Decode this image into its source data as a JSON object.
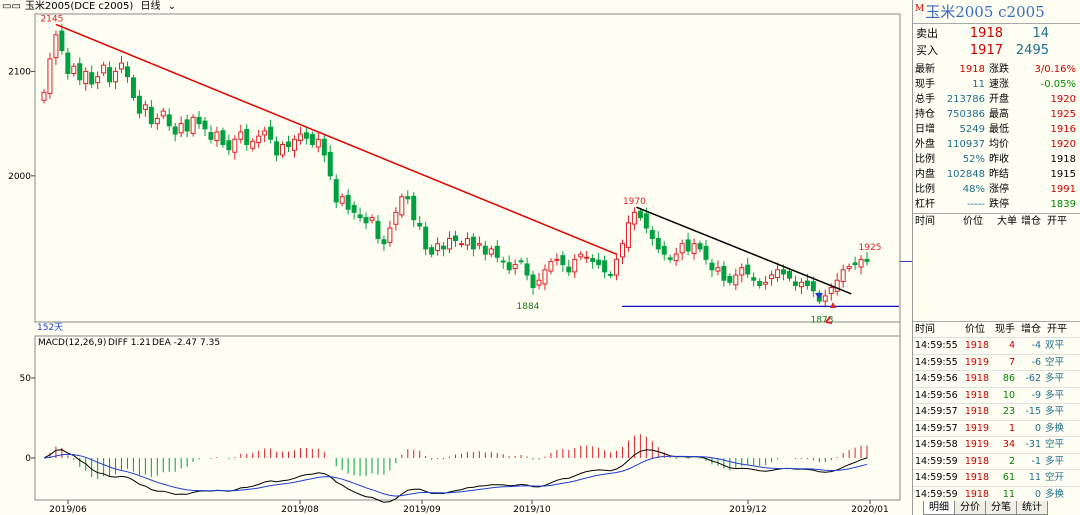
{
  "window": {
    "symbol_label": "玉米2005(DCE c2005)",
    "period_label": "日线"
  },
  "quote": {
    "title": "玉米2005 c2005",
    "title_marker": "M",
    "sell": {
      "label": "卖出",
      "price": "1918",
      "volume": "14"
    },
    "buy": {
      "label": "买入",
      "price": "1917",
      "volume": "2495"
    },
    "rows": [
      {
        "l1": "最新",
        "v1": "1918",
        "l2": "涨跌",
        "v2": "3/0.16%",
        "c1": "red",
        "c2": "red"
      },
      {
        "l1": "现手",
        "v1": "11",
        "l2": "速涨",
        "v2": "-0.05%",
        "c1": "teal",
        "c2": "grn"
      },
      {
        "l1": "总手",
        "v1": "213786",
        "l2": "开盘",
        "v2": "1920",
        "c1": "teal",
        "c2": "red"
      },
      {
        "l1": "持仓",
        "v1": "750386",
        "l2": "最高",
        "v2": "1925",
        "c1": "teal",
        "c2": "red"
      },
      {
        "l1": "日增",
        "v1": "5249",
        "l2": "最低",
        "v2": "1916",
        "c1": "teal",
        "c2": "red"
      },
      {
        "l1": "外盘",
        "v1": "110937",
        "l2": "均价",
        "v2": "1920",
        "c1": "teal",
        "c2": "red"
      },
      {
        "l1": "比例",
        "v1": "52%",
        "l2": "昨收",
        "v2": "1918",
        "c1": "teal",
        "c2": "blk"
      },
      {
        "l1": "内盘",
        "v1": "102848",
        "l2": "昨结",
        "v2": "1915",
        "c1": "teal",
        "c2": "blk"
      },
      {
        "l1": "比例",
        "v1": "48%",
        "l2": "涨停",
        "v2": "1991",
        "c1": "teal",
        "c2": "red"
      },
      {
        "l1": "杠杆",
        "v1": "-----",
        "l2": "跌停",
        "v2": "1839",
        "c1": "teal",
        "c2": "grn"
      }
    ],
    "big_header": {
      "time": "时间",
      "price": "价位",
      "big": "大单",
      "inc": "增仓",
      "open": "开平"
    }
  },
  "ticks": {
    "header": {
      "time": "时间",
      "price": "价位",
      "hand": "现手",
      "inc": "增仓",
      "open": "开平"
    },
    "rows": [
      {
        "time": "14:59:55",
        "price": "1918",
        "hand": "4",
        "inc": "-4",
        "type": "双平",
        "pc": "red",
        "hc": "red",
        "tc": "teal"
      },
      {
        "time": "14:59:55",
        "price": "1919",
        "hand": "7",
        "inc": "-6",
        "type": "空平",
        "pc": "red",
        "hc": "red",
        "tc": "teal"
      },
      {
        "time": "14:59:56",
        "price": "1918",
        "hand": "86",
        "inc": "-62",
        "type": "多平",
        "pc": "red",
        "hc": "grn",
        "tc": "teal"
      },
      {
        "time": "14:59:56",
        "price": "1918",
        "hand": "10",
        "inc": "-9",
        "type": "多平",
        "pc": "red",
        "hc": "grn",
        "tc": "teal"
      },
      {
        "time": "14:59:57",
        "price": "1918",
        "hand": "23",
        "inc": "-15",
        "type": "多平",
        "pc": "red",
        "hc": "grn",
        "tc": "teal"
      },
      {
        "time": "14:59:57",
        "price": "1919",
        "hand": "1",
        "inc": "0",
        "type": "多换",
        "pc": "red",
        "hc": "red",
        "tc": "teal"
      },
      {
        "time": "14:59:58",
        "price": "1919",
        "hand": "34",
        "inc": "-31",
        "type": "空平",
        "pc": "red",
        "hc": "red",
        "tc": "teal"
      },
      {
        "time": "14:59:59",
        "price": "1918",
        "hand": "2",
        "inc": "-1",
        "type": "多平",
        "pc": "red",
        "hc": "grn",
        "tc": "teal"
      },
      {
        "time": "14:59:59",
        "price": "1918",
        "hand": "61",
        "inc": "11",
        "type": "空开",
        "pc": "red",
        "hc": "grn",
        "tc": "teal"
      },
      {
        "time": "14:59:59",
        "price": "1918",
        "hand": "11",
        "inc": "0",
        "type": "多换",
        "pc": "red",
        "hc": "grn",
        "tc": "teal"
      }
    ]
  },
  "tabs": [
    "明细",
    "分价",
    "分笔",
    "统计"
  ],
  "colors": {
    "up": "#e0202a",
    "down": "#00a040",
    "trend_red": "#e00000",
    "trend_black": "#000000",
    "support": "#1010c0",
    "ma_blue": "#1f3fd0",
    "bg": "#fffef2"
  },
  "chart_data": {
    "type": "candlestick",
    "price_axis": {
      "ticks": [
        2000,
        2100
      ],
      "range": [
        1860,
        2155
      ]
    },
    "date_labels": [
      "2019/06",
      "2019/08",
      "2019/09",
      "2019/10",
      "2019/12",
      "2020/01"
    ],
    "annotations": {
      "high_label": "2145",
      "mid_high_label": "1970",
      "low_label": "1884",
      "recent_low_label": "1873",
      "recent_high_label": "1925",
      "days_label": "152天"
    },
    "closes": [
      2080,
      2112,
      2135,
      2120,
      2098,
      2105,
      2092,
      2100,
      2088,
      2095,
      2106,
      2090,
      2100,
      2108,
      2095,
      2075,
      2060,
      2068,
      2050,
      2055,
      2062,
      2048,
      2040,
      2050,
      2043,
      2056,
      2050,
      2045,
      2035,
      2042,
      2030,
      2025,
      2035,
      2042,
      2030,
      2033,
      2038,
      2043,
      2035,
      2020,
      2030,
      2028,
      2035,
      2040,
      2036,
      2030,
      2035,
      2020,
      2000,
      1975,
      1980,
      1968,
      1965,
      1960,
      1955,
      1960,
      1940,
      1935,
      1950,
      1965,
      1980,
      1978,
      1958,
      1952,
      1930,
      1925,
      1935,
      1930,
      1940,
      1938,
      1935,
      1940,
      1930,
      1935,
      1925,
      1930,
      1922,
      1918,
      1910,
      1915,
      1918,
      1905,
      1893,
      1900,
      1910,
      1918,
      1920,
      1915,
      1908,
      1920,
      1925,
      1922,
      1918,
      1915,
      1908,
      1905,
      1920,
      1935,
      1955,
      1965,
      1960,
      1950,
      1940,
      1930,
      1925,
      1920,
      1925,
      1935,
      1928,
      1935,
      1930,
      1920,
      1910,
      1912,
      1900,
      1898,
      1905,
      1912,
      1906,
      1900,
      1895,
      1898,
      1905,
      1910,
      1906,
      1902,
      1895,
      1898,
      1895,
      1890,
      1880,
      1885,
      1893,
      1900,
      1910,
      1913,
      1915,
      1920,
      1918
    ],
    "macd": {
      "params": "MACD(12,26,9)",
      "diff": "DIFF 1.21",
      "dea": "DEA -2.47",
      "value": "7.35",
      "axis_ticks": [
        0,
        50
      ]
    }
  }
}
